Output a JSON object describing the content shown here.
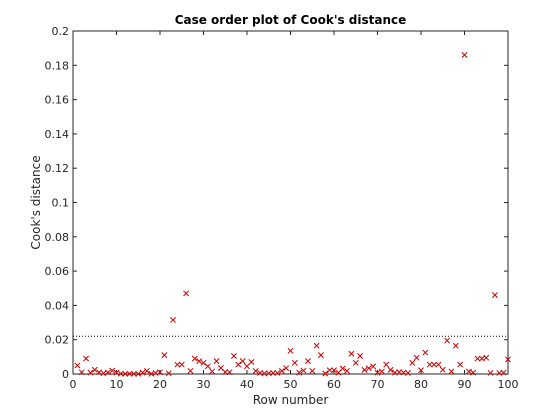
{
  "chart_data": {
    "type": "scatter",
    "title": "Case order plot of Cook's distance",
    "xlabel": "Row number",
    "ylabel": "Cook's distance",
    "xlim": [
      0,
      100
    ],
    "ylim": [
      0,
      0.2
    ],
    "x_ticks": [
      0,
      10,
      20,
      30,
      40,
      50,
      60,
      70,
      80,
      90,
      100
    ],
    "y_ticks": [
      0,
      0.02,
      0.04,
      0.06,
      0.08,
      0.1,
      0.12,
      0.14,
      0.16,
      0.18,
      0.2
    ],
    "x_tick_labels": [
      "0",
      "10",
      "20",
      "30",
      "40",
      "50",
      "60",
      "70",
      "80",
      "90",
      "100"
    ],
    "y_tick_labels": [
      "0",
      "0.02",
      "0.04",
      "0.06",
      "0.08",
      "0.1",
      "0.12",
      "0.14",
      "0.16",
      "0.18",
      "0.2"
    ],
    "grid": false,
    "marker": "x",
    "marker_color": "#cc0000",
    "reference_line": {
      "y": 0.022,
      "style": "dotted",
      "color": "#000000"
    },
    "points": {
      "x": [
        1,
        2,
        3,
        4,
        5,
        6,
        7,
        8,
        9,
        10,
        11,
        12,
        13,
        14,
        15,
        16,
        17,
        18,
        19,
        20,
        21,
        22,
        23,
        24,
        25,
        26,
        27,
        28,
        29,
        30,
        31,
        32,
        33,
        34,
        35,
        36,
        37,
        38,
        39,
        40,
        41,
        42,
        43,
        44,
        45,
        46,
        47,
        48,
        49,
        50,
        51,
        52,
        53,
        54,
        55,
        56,
        57,
        58,
        59,
        60,
        61,
        62,
        63,
        64,
        65,
        66,
        67,
        68,
        69,
        70,
        71,
        72,
        73,
        74,
        75,
        76,
        77,
        78,
        79,
        80,
        81,
        82,
        83,
        84,
        85,
        86,
        87,
        88,
        89,
        90,
        91,
        92,
        93,
        94,
        95,
        96,
        97,
        98,
        99,
        100
      ],
      "y": [
        0.005,
        0.001,
        0.009,
        0.0008,
        0.0025,
        0.001,
        0.0004,
        0.0009,
        0.002,
        0.0008,
        0.0002,
        0.0001,
        0.0001,
        0.0001,
        0.0001,
        0.0008,
        0.0018,
        0.0001,
        0.0006,
        0.001,
        0.011,
        0.0004,
        0.0315,
        0.0055,
        0.0055,
        0.047,
        0.0018,
        0.009,
        0.0075,
        0.0065,
        0.0045,
        0.0015,
        0.0075,
        0.0035,
        0.0012,
        0.001,
        0.0105,
        0.0055,
        0.0075,
        0.0045,
        0.007,
        0.0018,
        0.0006,
        0.0003,
        0.0004,
        0.0006,
        0.0006,
        0.0018,
        0.0034,
        0.0135,
        0.0065,
        0.0008,
        0.002,
        0.0075,
        0.0018,
        0.0165,
        0.011,
        0.0003,
        0.0022,
        0.0022,
        0.0008,
        0.0032,
        0.0018,
        0.0118,
        0.0065,
        0.0105,
        0.0024,
        0.0034,
        0.0044,
        0.0008,
        0.0015,
        0.0055,
        0.0024,
        0.0008,
        0.0012,
        0.0008,
        0.0006,
        0.0065,
        0.0095,
        0.0022,
        0.0125,
        0.0055,
        0.0055,
        0.0055,
        0.0025,
        0.0195,
        0.0015,
        0.0165,
        0.0055,
        0.186,
        0.0015,
        0.0008,
        0.009,
        0.009,
        0.0095,
        0.0006,
        0.046,
        0.0006,
        0.0008,
        0.0085
      ]
    }
  }
}
